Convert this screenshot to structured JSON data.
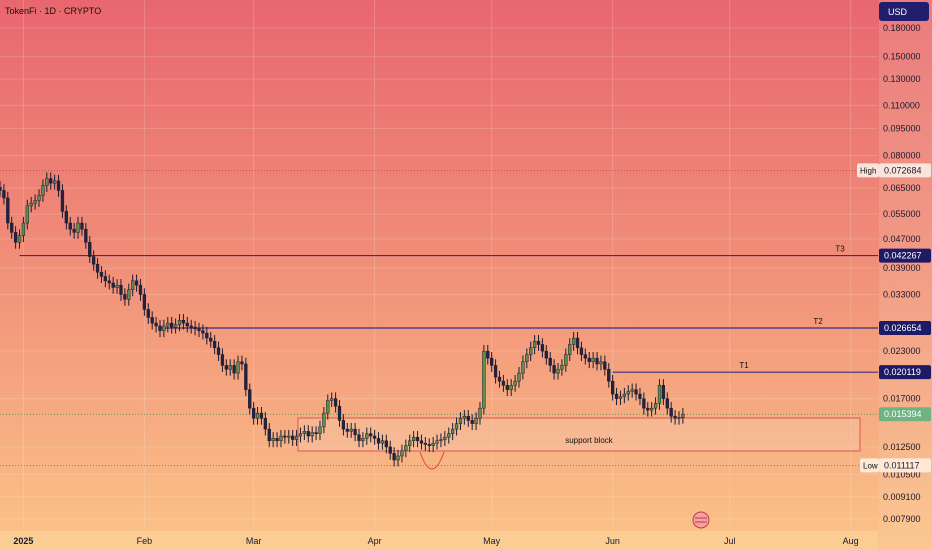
{
  "header": {
    "symbol_title": "TokenFi · 1D · CRYPTO"
  },
  "currency_button": {
    "label": "USD"
  },
  "price_axis": {
    "ticks": [
      "0.180000",
      "0.150000",
      "0.130000",
      "0.110000",
      "0.095000",
      "0.080000",
      "0.065000",
      "0.055000",
      "0.047000",
      "0.039000",
      "0.033000",
      "0.023000",
      "0.017000",
      "0.012500",
      "0.010500",
      "0.009100",
      "0.007900"
    ]
  },
  "badges": {
    "high_label": "High",
    "high_value": "0.072684",
    "t3_value": "0.042267",
    "t2_value": "0.026654",
    "t1_value": "0.020119",
    "current_value": "0.015394",
    "low_label": "Low",
    "low_value": "0.011117"
  },
  "levels": {
    "t3_label": "T3",
    "t2_label": "T2",
    "t1_label": "T1"
  },
  "annotations": {
    "support_label": "support block"
  },
  "time_axis": {
    "labels": [
      "2025",
      "Feb",
      "Mar",
      "Apr",
      "May",
      "Jun",
      "Jul",
      "Aug"
    ]
  },
  "colors": {
    "bull": "#5f8f49",
    "bear": "#23233f",
    "level_line": "#3a2f7a",
    "support_border": "#e0554f",
    "badge_navy": "#1f1a66",
    "badge_green": "#6fb383"
  },
  "chart_data": {
    "type": "candlestick",
    "title": "TokenFi · 1D · CRYPTO",
    "y_scale": "log",
    "ylim": [
      0.0074,
      0.2
    ],
    "xlim": [
      "2024-12-26",
      "2025-08-08"
    ],
    "x_labels": [
      "2025",
      "Feb",
      "Mar",
      "Apr",
      "May",
      "Jun",
      "Jul",
      "Aug"
    ],
    "levels": [
      {
        "name": "T3",
        "value": 0.042267
      },
      {
        "name": "T2",
        "value": 0.026654
      },
      {
        "name": "T1",
        "value": 0.020119
      }
    ],
    "high": 0.072684,
    "low": 0.011117,
    "last_price": 0.015394,
    "support_zone": {
      "label": "support block",
      "y_range": [
        0.0122,
        0.0148
      ]
    },
    "candles": [
      {
        "d": "2024-12-26",
        "c": 0.064
      },
      {
        "d": "2024-12-27",
        "c": 0.061
      },
      {
        "d": "2024-12-28",
        "c": 0.052
      },
      {
        "d": "2024-12-29",
        "c": 0.049
      },
      {
        "d": "2024-12-30",
        "c": 0.046
      },
      {
        "d": "2024-12-31",
        "c": 0.048
      },
      {
        "d": "2025-01-01",
        "c": 0.052
      },
      {
        "d": "2025-01-02",
        "c": 0.058
      },
      {
        "d": "2025-01-03",
        "c": 0.059
      },
      {
        "d": "2025-01-04",
        "c": 0.06
      },
      {
        "d": "2025-01-05",
        "c": 0.062
      },
      {
        "d": "2025-01-06",
        "c": 0.066
      },
      {
        "d": "2025-01-07",
        "c": 0.069
      },
      {
        "d": "2025-01-08",
        "c": 0.067
      },
      {
        "d": "2025-01-09",
        "c": 0.068
      },
      {
        "d": "2025-01-10",
        "c": 0.064
      },
      {
        "d": "2025-01-11",
        "c": 0.056
      },
      {
        "d": "2025-01-12",
        "c": 0.052
      },
      {
        "d": "2025-01-13",
        "c": 0.05
      },
      {
        "d": "2025-01-14",
        "c": 0.049
      },
      {
        "d": "2025-01-15",
        "c": 0.052
      },
      {
        "d": "2025-01-16",
        "c": 0.05
      },
      {
        "d": "2025-01-17",
        "c": 0.046
      },
      {
        "d": "2025-01-18",
        "c": 0.042
      },
      {
        "d": "2025-01-19",
        "c": 0.04
      },
      {
        "d": "2025-01-20",
        "c": 0.038
      },
      {
        "d": "2025-01-21",
        "c": 0.037
      },
      {
        "d": "2025-01-22",
        "c": 0.036
      },
      {
        "d": "2025-01-23",
        "c": 0.0355
      },
      {
        "d": "2025-01-24",
        "c": 0.0345
      },
      {
        "d": "2025-01-25",
        "c": 0.035
      },
      {
        "d": "2025-01-26",
        "c": 0.033
      },
      {
        "d": "2025-01-27",
        "c": 0.032
      },
      {
        "d": "2025-01-28",
        "c": 0.034
      },
      {
        "d": "2025-01-29",
        "c": 0.036
      },
      {
        "d": "2025-01-30",
        "c": 0.035
      },
      {
        "d": "2025-01-31",
        "c": 0.033
      },
      {
        "d": "2025-02-01",
        "c": 0.03
      },
      {
        "d": "2025-02-02",
        "c": 0.0285
      },
      {
        "d": "2025-02-03",
        "c": 0.0275
      },
      {
        "d": "2025-02-04",
        "c": 0.027
      },
      {
        "d": "2025-02-05",
        "c": 0.0262
      },
      {
        "d": "2025-02-06",
        "c": 0.027
      },
      {
        "d": "2025-02-07",
        "c": 0.0275
      },
      {
        "d": "2025-02-08",
        "c": 0.0268
      },
      {
        "d": "2025-02-09",
        "c": 0.0272
      },
      {
        "d": "2025-02-10",
        "c": 0.028
      },
      {
        "d": "2025-02-11",
        "c": 0.0275
      },
      {
        "d": "2025-02-12",
        "c": 0.027
      },
      {
        "d": "2025-02-13",
        "c": 0.0268
      },
      {
        "d": "2025-02-14",
        "c": 0.0265
      },
      {
        "d": "2025-02-15",
        "c": 0.0262
      },
      {
        "d": "2025-02-16",
        "c": 0.0258
      },
      {
        "d": "2025-02-17",
        "c": 0.025
      },
      {
        "d": "2025-02-18",
        "c": 0.0245
      },
      {
        "d": "2025-02-19",
        "c": 0.0235
      },
      {
        "d": "2025-02-20",
        "c": 0.0225
      },
      {
        "d": "2025-02-21",
        "c": 0.021
      },
      {
        "d": "2025-02-22",
        "c": 0.0205
      },
      {
        "d": "2025-02-23",
        "c": 0.021
      },
      {
        "d": "2025-02-24",
        "c": 0.02
      },
      {
        "d": "2025-02-25",
        "c": 0.0215
      },
      {
        "d": "2025-02-26",
        "c": 0.0212
      },
      {
        "d": "2025-02-27",
        "c": 0.018
      },
      {
        "d": "2025-02-28",
        "c": 0.016
      },
      {
        "d": "2025-03-01",
        "c": 0.015
      },
      {
        "d": "2025-03-02",
        "c": 0.0155
      },
      {
        "d": "2025-03-03",
        "c": 0.015
      },
      {
        "d": "2025-03-04",
        "c": 0.014
      },
      {
        "d": "2025-03-05",
        "c": 0.013
      },
      {
        "d": "2025-03-06",
        "c": 0.0132
      },
      {
        "d": "2025-03-07",
        "c": 0.013
      },
      {
        "d": "2025-03-08",
        "c": 0.0134
      },
      {
        "d": "2025-03-09",
        "c": 0.0133
      },
      {
        "d": "2025-03-10",
        "c": 0.0134
      },
      {
        "d": "2025-03-11",
        "c": 0.0131
      },
      {
        "d": "2025-03-12",
        "c": 0.0134
      },
      {
        "d": "2025-03-13",
        "c": 0.0136
      },
      {
        "d": "2025-03-14",
        "c": 0.0138
      },
      {
        "d": "2025-03-15",
        "c": 0.0134
      },
      {
        "d": "2025-03-16",
        "c": 0.0137
      },
      {
        "d": "2025-03-17",
        "c": 0.0136
      },
      {
        "d": "2025-03-18",
        "c": 0.0142
      },
      {
        "d": "2025-03-19",
        "c": 0.0155
      },
      {
        "d": "2025-03-20",
        "c": 0.0168
      },
      {
        "d": "2025-03-21",
        "c": 0.017
      },
      {
        "d": "2025-03-22",
        "c": 0.0162
      },
      {
        "d": "2025-03-23",
        "c": 0.0148
      },
      {
        "d": "2025-03-24",
        "c": 0.014
      },
      {
        "d": "2025-03-25",
        "c": 0.0138
      },
      {
        "d": "2025-03-26",
        "c": 0.014
      },
      {
        "d": "2025-03-27",
        "c": 0.0135
      },
      {
        "d": "2025-03-28",
        "c": 0.013
      },
      {
        "d": "2025-03-29",
        "c": 0.0132
      },
      {
        "d": "2025-03-30",
        "c": 0.0136
      },
      {
        "d": "2025-03-31",
        "c": 0.0134
      },
      {
        "d": "2025-04-01",
        "c": 0.0132
      },
      {
        "d": "2025-04-02",
        "c": 0.0128
      },
      {
        "d": "2025-04-03",
        "c": 0.013
      },
      {
        "d": "2025-04-04",
        "c": 0.0125
      },
      {
        "d": "2025-04-05",
        "c": 0.012
      },
      {
        "d": "2025-04-06",
        "c": 0.0115
      },
      {
        "d": "2025-04-07",
        "c": 0.0118
      },
      {
        "d": "2025-04-08",
        "c": 0.0122
      },
      {
        "d": "2025-04-09",
        "c": 0.0126
      },
      {
        "d": "2025-04-10",
        "c": 0.013
      },
      {
        "d": "2025-04-11",
        "c": 0.0133
      },
      {
        "d": "2025-04-12",
        "c": 0.013
      },
      {
        "d": "2025-04-13",
        "c": 0.0128
      },
      {
        "d": "2025-04-14",
        "c": 0.0127
      },
      {
        "d": "2025-04-15",
        "c": 0.0126
      },
      {
        "d": "2025-04-16",
        "c": 0.0128
      },
      {
        "d": "2025-04-17",
        "c": 0.013
      },
      {
        "d": "2025-04-18",
        "c": 0.0131
      },
      {
        "d": "2025-04-19",
        "c": 0.0133
      },
      {
        "d": "2025-04-20",
        "c": 0.0136
      },
      {
        "d": "2025-04-21",
        "c": 0.014
      },
      {
        "d": "2025-04-22",
        "c": 0.0145
      },
      {
        "d": "2025-04-23",
        "c": 0.015
      },
      {
        "d": "2025-04-24",
        "c": 0.0152
      },
      {
        "d": "2025-04-25",
        "c": 0.0148
      },
      {
        "d": "2025-04-26",
        "c": 0.0145
      },
      {
        "d": "2025-04-27",
        "c": 0.015
      },
      {
        "d": "2025-04-28",
        "c": 0.016
      },
      {
        "d": "2025-04-29",
        "c": 0.023
      },
      {
        "d": "2025-04-30",
        "c": 0.022
      },
      {
        "d": "2025-05-01",
        "c": 0.021
      },
      {
        "d": "2025-05-02",
        "c": 0.0195
      },
      {
        "d": "2025-05-03",
        "c": 0.019
      },
      {
        "d": "2025-05-04",
        "c": 0.0185
      },
      {
        "d": "2025-05-05",
        "c": 0.018
      },
      {
        "d": "2025-05-06",
        "c": 0.0185
      },
      {
        "d": "2025-05-07",
        "c": 0.019
      },
      {
        "d": "2025-05-08",
        "c": 0.02
      },
      {
        "d": "2025-05-09",
        "c": 0.0215
      },
      {
        "d": "2025-05-10",
        "c": 0.0225
      },
      {
        "d": "2025-05-11",
        "c": 0.0235
      },
      {
        "d": "2025-05-12",
        "c": 0.0245
      },
      {
        "d": "2025-05-13",
        "c": 0.024
      },
      {
        "d": "2025-05-14",
        "c": 0.023
      },
      {
        "d": "2025-05-15",
        "c": 0.022
      },
      {
        "d": "2025-05-16",
        "c": 0.021
      },
      {
        "d": "2025-05-17",
        "c": 0.02
      },
      {
        "d": "2025-05-18",
        "c": 0.0205
      },
      {
        "d": "2025-05-19",
        "c": 0.021
      },
      {
        "d": "2025-05-20",
        "c": 0.0225
      },
      {
        "d": "2025-05-21",
        "c": 0.024
      },
      {
        "d": "2025-05-22",
        "c": 0.025
      },
      {
        "d": "2025-05-23",
        "c": 0.0235
      },
      {
        "d": "2025-05-24",
        "c": 0.0225
      },
      {
        "d": "2025-05-25",
        "c": 0.022
      },
      {
        "d": "2025-05-26",
        "c": 0.0215
      },
      {
        "d": "2025-05-27",
        "c": 0.022
      },
      {
        "d": "2025-05-28",
        "c": 0.0212
      },
      {
        "d": "2025-05-29",
        "c": 0.0215
      },
      {
        "d": "2025-05-30",
        "c": 0.0205
      },
      {
        "d": "2025-05-31",
        "c": 0.019
      },
      {
        "d": "2025-06-01",
        "c": 0.0175
      },
      {
        "d": "2025-06-02",
        "c": 0.017
      },
      {
        "d": "2025-06-03",
        "c": 0.0172
      },
      {
        "d": "2025-06-04",
        "c": 0.0175
      },
      {
        "d": "2025-06-05",
        "c": 0.0178
      },
      {
        "d": "2025-06-06",
        "c": 0.018
      },
      {
        "d": "2025-06-07",
        "c": 0.0175
      },
      {
        "d": "2025-06-08",
        "c": 0.017
      },
      {
        "d": "2025-06-09",
        "c": 0.016
      },
      {
        "d": "2025-06-10",
        "c": 0.0158
      },
      {
        "d": "2025-06-11",
        "c": 0.016
      },
      {
        "d": "2025-06-12",
        "c": 0.0165
      },
      {
        "d": "2025-06-13",
        "c": 0.0185
      },
      {
        "d": "2025-06-14",
        "c": 0.017
      },
      {
        "d": "2025-06-15",
        "c": 0.016
      },
      {
        "d": "2025-06-16",
        "c": 0.0152
      },
      {
        "d": "2025-06-17",
        "c": 0.015
      },
      {
        "d": "2025-06-18",
        "c": 0.0151
      },
      {
        "d": "2025-06-19",
        "c": 0.015394
      }
    ]
  }
}
